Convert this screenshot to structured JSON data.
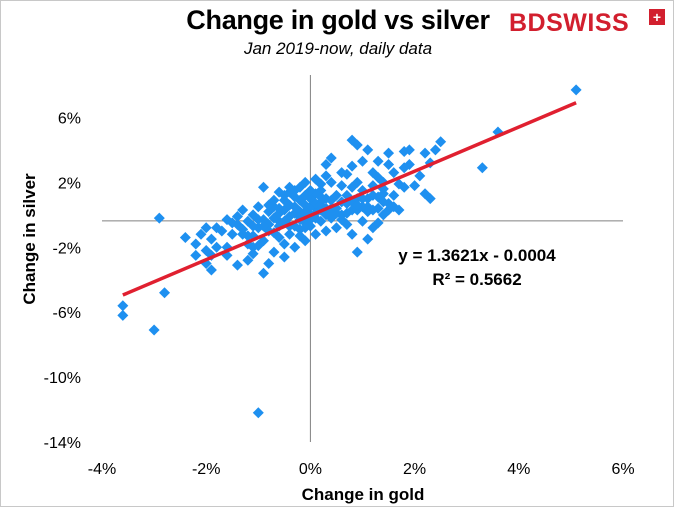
{
  "header": {
    "title": "Change in gold vs silver",
    "subtitle": "Jan 2019-now, daily data",
    "logo_text": "BDSWISS",
    "logo_mark": "+"
  },
  "colors": {
    "points": "#1e90f0",
    "trendline": "#e02030",
    "logo": "#d21f2e",
    "axis": "#808080"
  },
  "chart_data": {
    "type": "scatter",
    "title": "Change in gold vs silver",
    "subtitle": "Jan 2019-now, daily data",
    "xlabel": "Change in gold",
    "ylabel": "Change in silver",
    "xlim": [
      -0.04,
      0.06
    ],
    "ylim": [
      -0.14,
      0.08
    ],
    "x_ticks": [
      -0.04,
      -0.02,
      0,
      0.02,
      0.04,
      0.06
    ],
    "x_tick_labels": [
      "-4%",
      "-2%",
      "0%",
      "2%",
      "4%",
      "6%"
    ],
    "y_ticks": [
      0.06,
      0.02,
      -0.02,
      -0.06,
      -0.1,
      -0.14
    ],
    "y_tick_labels": [
      "6%",
      "2%",
      "-2%",
      "-6%",
      "-10%",
      "-14%"
    ],
    "grid": false,
    "legend": "none",
    "trendline": {
      "slope": 1.3621,
      "intercept": -0.0004,
      "x_range": [
        -0.036,
        0.051
      ],
      "equation": "y = 1.3621x - 0.0004",
      "r2_label": "R² = 0.5662"
    },
    "series": [
      {
        "points": [
          [
            0.051,
            0.077
          ],
          [
            0.036,
            0.051
          ],
          [
            0.033,
            0.029
          ],
          [
            0.025,
            0.045
          ],
          [
            0.024,
            0.04
          ],
          [
            0.022,
            0.038
          ],
          [
            0.023,
            0.032
          ],
          [
            0.021,
            0.024
          ],
          [
            0.022,
            0.013
          ],
          [
            0.023,
            0.01
          ],
          [
            0.02,
            0.018
          ],
          [
            0.019,
            0.031
          ],
          [
            0.018,
            0.039
          ],
          [
            0.019,
            0.04
          ],
          [
            0.018,
            0.029
          ],
          [
            0.017,
            0.019
          ],
          [
            0.016,
            0.026
          ],
          [
            0.015,
            0.038
          ],
          [
            0.015,
            0.031
          ],
          [
            0.016,
            0.012
          ],
          [
            0.015,
            0.007
          ],
          [
            0.014,
            0.02
          ],
          [
            0.013,
            0.033
          ],
          [
            0.013,
            0.023
          ],
          [
            0.014,
            0.016
          ],
          [
            0.012,
            0.026
          ],
          [
            0.011,
            0.04
          ],
          [
            0.012,
            0.012
          ],
          [
            0.011,
            0.01
          ],
          [
            0.01,
            0.033
          ],
          [
            0.01,
            0.015
          ],
          [
            0.009,
            0.02
          ],
          [
            0.008,
            0.046
          ],
          [
            0.009,
            0.043
          ],
          [
            0.008,
            0.03
          ],
          [
            0.007,
            0.025
          ],
          [
            0.009,
            0.01
          ],
          [
            0.01,
            0.005
          ],
          [
            0.008,
            0.003
          ],
          [
            0.007,
            0.007
          ],
          [
            0.006,
            0.018
          ],
          [
            0.005,
            0.012
          ],
          [
            0.004,
            0.035
          ],
          [
            0.003,
            0.031
          ],
          [
            0.004,
            0.02
          ],
          [
            0.003,
            0.01
          ],
          [
            0.004,
            0.004
          ],
          [
            0.002,
            0.015
          ],
          [
            0.002,
            0.008
          ],
          [
            0.001,
            0.013
          ],
          [
            0.001,
            0.004
          ],
          [
            0.0,
            0.01
          ],
          [
            0.0,
            0.005
          ],
          [
            -0.001,
            0.006
          ],
          [
            -0.001,
            0.012
          ],
          [
            -0.002,
            0.002
          ],
          [
            -0.002,
            0.009
          ],
          [
            -0.003,
            0.005
          ],
          [
            -0.003,
            0.015
          ],
          [
            -0.004,
            -0.001
          ],
          [
            -0.005,
            0.003
          ],
          [
            -0.005,
            0.009
          ],
          [
            -0.006,
            -0.004
          ],
          [
            -0.007,
            0.005
          ],
          [
            -0.008,
            0.002
          ],
          [
            -0.009,
            -0.003
          ],
          [
            -0.01,
            0.005
          ],
          [
            -0.011,
            0.0
          ],
          [
            -0.012,
            -0.004
          ],
          [
            -0.013,
            0.003
          ],
          [
            -0.014,
            -0.006
          ],
          [
            -0.015,
            -0.005
          ],
          [
            -0.016,
            -0.003
          ],
          [
            -0.017,
            -0.01
          ],
          [
            -0.018,
            -0.008
          ],
          [
            -0.019,
            -0.015
          ],
          [
            -0.02,
            -0.008
          ],
          [
            -0.021,
            -0.012
          ],
          [
            -0.022,
            -0.018
          ],
          [
            -0.024,
            -0.014
          ],
          [
            -0.028,
            -0.048
          ],
          [
            -0.029,
            -0.002
          ],
          [
            -0.03,
            -0.071
          ],
          [
            -0.036,
            -0.056
          ],
          [
            -0.036,
            -0.062
          ],
          [
            -0.01,
            -0.122
          ],
          [
            -0.009,
            -0.036
          ],
          [
            -0.008,
            -0.03
          ],
          [
            -0.007,
            -0.023
          ],
          [
            -0.006,
            -0.014
          ],
          [
            -0.005,
            -0.026
          ],
          [
            -0.004,
            -0.012
          ],
          [
            -0.003,
            -0.02
          ],
          [
            -0.002,
            -0.009
          ],
          [
            -0.001,
            -0.016
          ],
          [
            0.0,
            -0.007
          ],
          [
            0.001,
            -0.012
          ],
          [
            0.002,
            -0.004
          ],
          [
            0.003,
            -0.01
          ],
          [
            0.004,
            -0.002
          ],
          [
            0.005,
            -0.008
          ],
          [
            0.006,
            0.0
          ],
          [
            0.007,
            -0.006
          ],
          [
            0.008,
            -0.012
          ],
          [
            0.009,
            -0.023
          ],
          [
            0.01,
            -0.004
          ],
          [
            0.011,
            -0.015
          ],
          [
            0.012,
            -0.008
          ],
          [
            0.013,
            0.004
          ],
          [
            0.014,
            0.0
          ],
          [
            0.015,
            0.003
          ],
          [
            0.003,
            0.0
          ],
          [
            0.002,
            0.003
          ],
          [
            0.001,
            -0.002
          ],
          [
            0.0,
            0.0
          ],
          [
            -0.001,
            -0.005
          ],
          [
            -0.002,
            -0.003
          ],
          [
            -0.003,
            -0.007
          ],
          [
            -0.004,
            0.006
          ],
          [
            -0.006,
            0.004
          ],
          [
            -0.007,
            -0.002
          ],
          [
            -0.008,
            -0.01
          ],
          [
            -0.01,
            -0.008
          ],
          [
            -0.011,
            -0.013
          ],
          [
            -0.012,
            -0.018
          ],
          [
            -0.013,
            -0.012
          ],
          [
            -0.015,
            -0.012
          ],
          [
            -0.016,
            -0.02
          ],
          [
            -0.018,
            -0.02
          ],
          [
            -0.019,
            -0.025
          ],
          [
            -0.011,
            -0.02
          ],
          [
            -0.012,
            -0.028
          ],
          [
            -0.014,
            -0.031
          ],
          [
            -0.016,
            -0.025
          ],
          [
            -0.019,
            -0.034
          ],
          [
            -0.02,
            -0.03
          ],
          [
            -0.02,
            -0.022
          ],
          [
            -0.022,
            -0.025
          ],
          [
            -0.009,
            0.017
          ],
          [
            -0.006,
            0.014
          ],
          [
            -0.004,
            0.017
          ],
          [
            0.006,
            0.026
          ],
          [
            0.005,
            0.004
          ],
          [
            0.006,
            0.008
          ],
          [
            0.007,
            0.012
          ],
          [
            0.008,
            0.017
          ],
          [
            0.009,
            0.003
          ],
          [
            0.011,
            0.005
          ],
          [
            0.012,
            0.018
          ],
          [
            0.013,
            0.011
          ],
          [
            0.014,
            0.013
          ],
          [
            0.016,
            0.005
          ],
          [
            0.017,
            0.003
          ],
          [
            0.018,
            0.017
          ],
          [
            0.004,
            0.009
          ],
          [
            0.002,
            0.011
          ],
          [
            0.001,
            0.001
          ],
          [
            -0.001,
            0.002
          ],
          [
            -0.002,
            -0.001
          ],
          [
            -0.003,
            0.001
          ],
          [
            -0.005,
            -0.004
          ],
          [
            -0.006,
            -0.007
          ],
          [
            -0.007,
            -0.011
          ],
          [
            -0.008,
            -0.006
          ],
          [
            -0.009,
            -0.016
          ],
          [
            -0.01,
            -0.019
          ],
          [
            -0.011,
            -0.024
          ],
          [
            -0.005,
            -0.018
          ],
          [
            -0.004,
            -0.007
          ],
          [
            -0.002,
            -0.013
          ],
          [
            -0.001,
            -0.008
          ],
          [
            0.0,
            -0.003
          ],
          [
            0.001,
            0.007
          ],
          [
            0.002,
            0.006
          ],
          [
            0.003,
            0.004
          ],
          [
            0.004,
            0.001
          ],
          [
            0.005,
            0.001
          ],
          [
            0.006,
            -0.003
          ],
          [
            0.007,
            0.001
          ],
          [
            0.008,
            0.008
          ],
          [
            0.009,
            0.006
          ],
          [
            0.01,
            0.01
          ],
          [
            0.011,
            0.002
          ],
          [
            0.012,
            0.003
          ],
          [
            0.013,
            -0.005
          ],
          [
            0.014,
            0.008
          ],
          [
            -0.014,
            -0.001
          ],
          [
            -0.013,
            -0.009
          ],
          [
            -0.012,
            -0.013
          ],
          [
            -0.011,
            -0.007
          ],
          [
            -0.01,
            -0.003
          ],
          [
            -0.009,
            -0.007
          ],
          [
            -0.008,
            0.006
          ],
          [
            -0.007,
            0.009
          ],
          [
            -0.006,
            0.001
          ],
          [
            -0.005,
            0.012
          ],
          [
            -0.004,
            0.014
          ],
          [
            -0.003,
            0.011
          ],
          [
            -0.002,
            0.017
          ],
          [
            -0.001,
            0.02
          ],
          [
            0.0,
            0.015
          ],
          [
            0.001,
            0.022
          ],
          [
            0.002,
            0.019
          ],
          [
            0.003,
            0.024
          ]
        ]
      }
    ]
  }
}
